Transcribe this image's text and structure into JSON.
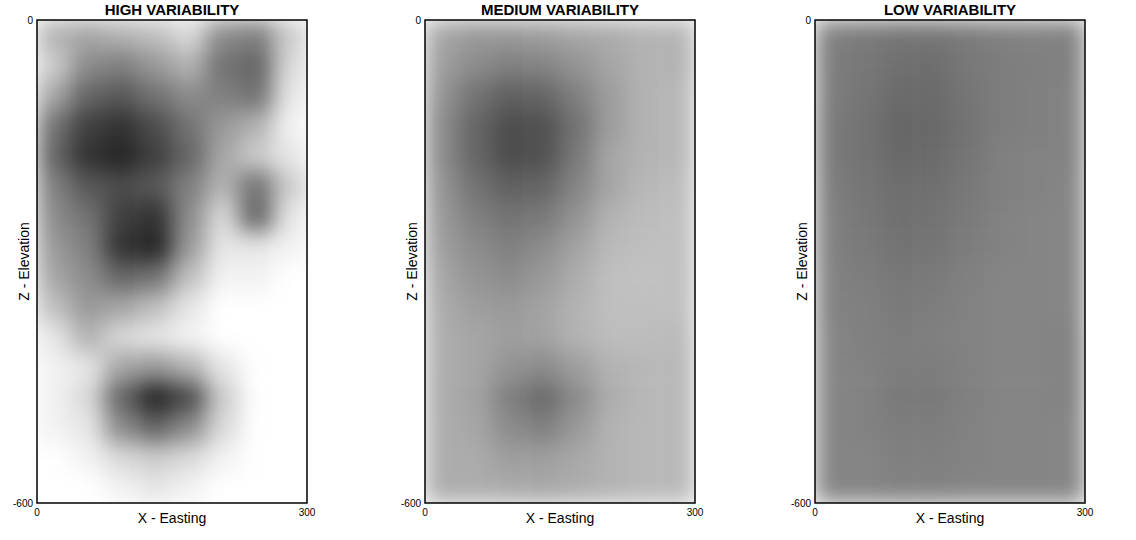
{
  "chart_data": [
    {
      "type": "heatmap",
      "title": "HIGH VARIABILITY",
      "x_label": "X - Easting",
      "y_label": "Z - Elevation",
      "xlim": [
        0,
        300
      ],
      "ylim": [
        -600,
        0
      ],
      "xticks": [
        0,
        300
      ],
      "yticks": [
        -600,
        0
      ],
      "cells": [
        [
          0.3,
          0.35,
          0.3,
          0.25,
          0.15,
          0.45,
          0.5,
          0.2
        ],
        [
          0.2,
          0.45,
          0.5,
          0.4,
          0.3,
          0.55,
          0.6,
          0.15
        ],
        [
          0.35,
          0.6,
          0.65,
          0.55,
          0.45,
          0.5,
          0.55,
          0.1
        ],
        [
          0.55,
          0.75,
          0.8,
          0.7,
          0.55,
          0.4,
          0.3,
          0.05
        ],
        [
          0.6,
          0.8,
          0.85,
          0.75,
          0.6,
          0.35,
          0.2,
          0.1
        ],
        [
          0.5,
          0.65,
          0.7,
          0.65,
          0.5,
          0.3,
          0.55,
          0.2
        ],
        [
          0.45,
          0.55,
          0.75,
          0.8,
          0.45,
          0.15,
          0.6,
          0.1
        ],
        [
          0.4,
          0.5,
          0.8,
          0.85,
          0.4,
          0.1,
          0.1,
          0.05
        ],
        [
          0.35,
          0.45,
          0.6,
          0.55,
          0.25,
          0.05,
          0.05,
          0.0
        ],
        [
          0.25,
          0.4,
          0.35,
          0.25,
          0.1,
          0.0,
          0.0,
          0.0
        ],
        [
          0.1,
          0.3,
          0.15,
          0.1,
          0.05,
          0.0,
          0.0,
          0.0
        ],
        [
          0.05,
          0.1,
          0.35,
          0.4,
          0.3,
          0.1,
          0.0,
          0.0
        ],
        [
          0.05,
          0.15,
          0.6,
          0.85,
          0.7,
          0.2,
          0.0,
          0.0
        ],
        [
          0.05,
          0.1,
          0.45,
          0.6,
          0.45,
          0.15,
          0.0,
          0.0
        ],
        [
          0.0,
          0.05,
          0.15,
          0.2,
          0.15,
          0.05,
          0.0,
          0.0
        ],
        [
          0.0,
          0.0,
          0.05,
          0.1,
          0.05,
          0.0,
          0.0,
          0.0
        ]
      ]
    },
    {
      "type": "heatmap",
      "title": "MEDIUM VARIABILITY",
      "x_label": "X - Easting",
      "y_label": "Z - Elevation",
      "xlim": [
        0,
        300
      ],
      "ylim": [
        -600,
        0
      ],
      "xticks": [
        0,
        300
      ],
      "yticks": [
        -600,
        0
      ],
      "cells": [
        [
          0.35,
          0.4,
          0.4,
          0.38,
          0.35,
          0.33,
          0.3,
          0.3
        ],
        [
          0.38,
          0.45,
          0.5,
          0.48,
          0.42,
          0.35,
          0.3,
          0.3
        ],
        [
          0.42,
          0.55,
          0.62,
          0.6,
          0.5,
          0.38,
          0.3,
          0.28
        ],
        [
          0.45,
          0.6,
          0.7,
          0.68,
          0.55,
          0.38,
          0.3,
          0.28
        ],
        [
          0.45,
          0.6,
          0.7,
          0.68,
          0.52,
          0.35,
          0.3,
          0.28
        ],
        [
          0.42,
          0.55,
          0.62,
          0.6,
          0.48,
          0.35,
          0.28,
          0.26
        ],
        [
          0.4,
          0.5,
          0.55,
          0.52,
          0.42,
          0.3,
          0.26,
          0.25
        ],
        [
          0.38,
          0.45,
          0.5,
          0.45,
          0.36,
          0.27,
          0.25,
          0.25
        ],
        [
          0.35,
          0.42,
          0.45,
          0.4,
          0.32,
          0.25,
          0.24,
          0.25
        ],
        [
          0.33,
          0.38,
          0.4,
          0.36,
          0.3,
          0.25,
          0.25,
          0.25
        ],
        [
          0.32,
          0.35,
          0.38,
          0.36,
          0.3,
          0.26,
          0.26,
          0.27
        ],
        [
          0.32,
          0.35,
          0.42,
          0.45,
          0.38,
          0.3,
          0.28,
          0.28
        ],
        [
          0.32,
          0.36,
          0.5,
          0.58,
          0.45,
          0.32,
          0.28,
          0.28
        ],
        [
          0.32,
          0.35,
          0.45,
          0.5,
          0.4,
          0.3,
          0.28,
          0.28
        ],
        [
          0.32,
          0.33,
          0.38,
          0.38,
          0.34,
          0.3,
          0.28,
          0.28
        ],
        [
          0.32,
          0.32,
          0.33,
          0.34,
          0.32,
          0.3,
          0.28,
          0.28
        ]
      ]
    },
    {
      "type": "heatmap",
      "title": "LOW VARIABILITY",
      "x_label": "X - Easting",
      "y_label": "Z - Elevation",
      "xlim": [
        0,
        300
      ],
      "ylim": [
        -600,
        0
      ],
      "xticks": [
        0,
        300
      ],
      "yticks": [
        -600,
        0
      ],
      "cells": [
        [
          0.5,
          0.52,
          0.54,
          0.54,
          0.52,
          0.5,
          0.49,
          0.5
        ],
        [
          0.51,
          0.53,
          0.56,
          0.57,
          0.53,
          0.51,
          0.5,
          0.5
        ],
        [
          0.51,
          0.54,
          0.58,
          0.58,
          0.54,
          0.51,
          0.5,
          0.49
        ],
        [
          0.52,
          0.55,
          0.6,
          0.59,
          0.55,
          0.51,
          0.5,
          0.49
        ],
        [
          0.52,
          0.55,
          0.59,
          0.58,
          0.54,
          0.5,
          0.49,
          0.49
        ],
        [
          0.51,
          0.54,
          0.57,
          0.56,
          0.53,
          0.5,
          0.49,
          0.48
        ],
        [
          0.5,
          0.53,
          0.56,
          0.55,
          0.52,
          0.49,
          0.48,
          0.48
        ],
        [
          0.5,
          0.52,
          0.55,
          0.54,
          0.51,
          0.49,
          0.48,
          0.48
        ],
        [
          0.49,
          0.51,
          0.53,
          0.52,
          0.5,
          0.48,
          0.48,
          0.48
        ],
        [
          0.49,
          0.5,
          0.52,
          0.51,
          0.49,
          0.48,
          0.48,
          0.48
        ],
        [
          0.48,
          0.5,
          0.51,
          0.5,
          0.49,
          0.48,
          0.48,
          0.49
        ],
        [
          0.48,
          0.49,
          0.51,
          0.51,
          0.49,
          0.48,
          0.48,
          0.49
        ],
        [
          0.48,
          0.49,
          0.52,
          0.52,
          0.5,
          0.48,
          0.48,
          0.49
        ],
        [
          0.48,
          0.49,
          0.51,
          0.51,
          0.49,
          0.48,
          0.48,
          0.48
        ],
        [
          0.48,
          0.48,
          0.5,
          0.5,
          0.49,
          0.48,
          0.48,
          0.48
        ],
        [
          0.48,
          0.48,
          0.49,
          0.49,
          0.48,
          0.48,
          0.48,
          0.48
        ]
      ]
    }
  ]
}
